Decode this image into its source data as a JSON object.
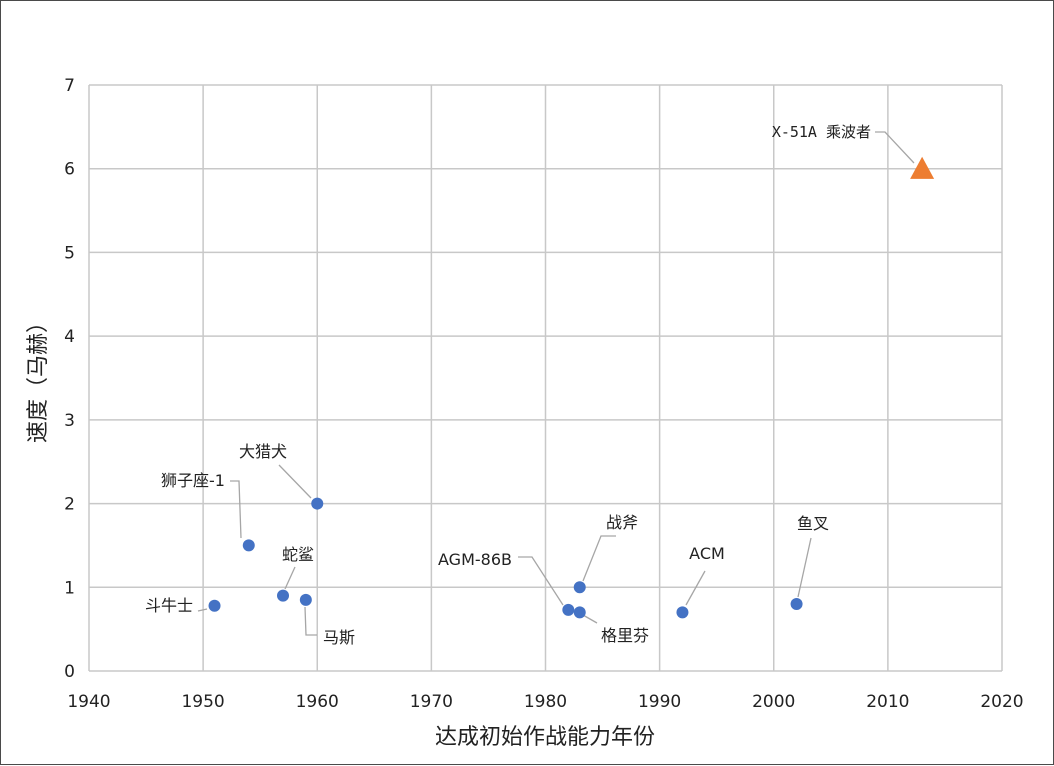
{
  "chart_data": {
    "type": "scatter",
    "xlabel": "达成初始作战能力年份",
    "ylabel": "速度（马赫）",
    "xlim": [
      1940,
      2020
    ],
    "ylim": [
      0,
      7
    ],
    "xticks": [
      1940,
      1950,
      1960,
      1970,
      1980,
      1990,
      2000,
      2010,
      2020
    ],
    "yticks": [
      0,
      1,
      2,
      3,
      4,
      5,
      6,
      7
    ],
    "grid": true,
    "colors": {
      "missile": "#4472c4",
      "hypersonic": "#ed7d31",
      "grid": "#c8c8c8",
      "leader": "#a6a6a6"
    },
    "points": [
      {
        "label": "斗牛士",
        "x": 1951,
        "y": 0.78,
        "marker": "circle"
      },
      {
        "label": "狮子座-1",
        "x": 1954,
        "y": 1.5,
        "marker": "circle"
      },
      {
        "label": "蛇鲨",
        "x": 1957,
        "y": 0.9,
        "marker": "circle"
      },
      {
        "label": "马斯",
        "x": 1959,
        "y": 0.85,
        "marker": "circle"
      },
      {
        "label": "大猎犬",
        "x": 1960,
        "y": 2.0,
        "marker": "circle"
      },
      {
        "label": "AGM-86B",
        "x": 1982,
        "y": 0.73,
        "marker": "circle"
      },
      {
        "label": "格里芬",
        "x": 1983,
        "y": 0.7,
        "marker": "circle"
      },
      {
        "label": "战斧",
        "x": 1983,
        "y": 1.0,
        "marker": "circle"
      },
      {
        "label": "ACM",
        "x": 1992,
        "y": 0.7,
        "marker": "circle"
      },
      {
        "label": "鱼叉",
        "x": 2002,
        "y": 0.8,
        "marker": "circle"
      },
      {
        "label": "X-51A 乘波者",
        "x": 2013,
        "y": 6.0,
        "marker": "triangle"
      }
    ]
  }
}
